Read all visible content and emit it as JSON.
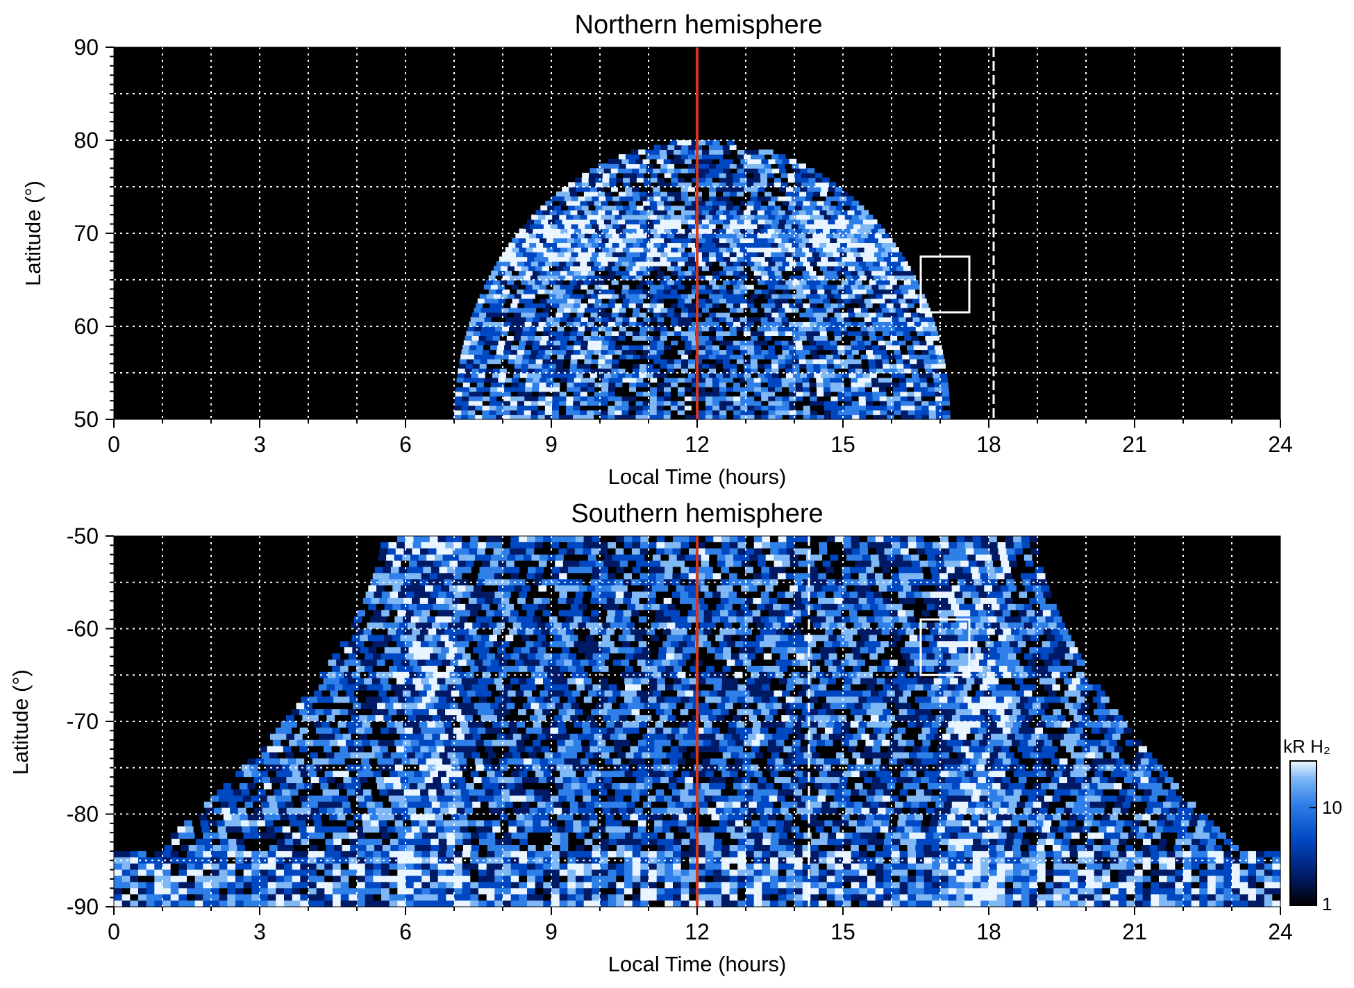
{
  "chart_data": [
    {
      "type": "heatmap",
      "title": "Northern hemisphere",
      "xlabel": "Local Time (hours)",
      "ylabel": "Latitude (°)",
      "xlim": [
        0,
        24
      ],
      "ylim": [
        50,
        90
      ],
      "xticks": [
        "0",
        "3",
        "6",
        "9",
        "12",
        "15",
        "18",
        "21",
        "24"
      ],
      "yticks": [
        "50",
        "60",
        "70",
        "80",
        "90"
      ],
      "grid": true,
      "background": "#000000",
      "colormap": [
        "#000000",
        "#001a66",
        "#0047c2",
        "#2f7fe8",
        "#7fb8f5",
        "#e8f4ff"
      ],
      "coverage": {
        "lt_start": 7,
        "lt_end": 17.2,
        "lat_max": 80
      },
      "markers": [
        {
          "type": "vline",
          "x": 12,
          "color": "#d4381c"
        },
        {
          "type": "vline",
          "x": 18.1,
          "color": "#ffffff",
          "style": "dashed"
        },
        {
          "type": "box",
          "x": [
            16.6,
            17.6
          ],
          "y": [
            61.5,
            67.5
          ],
          "color": "#ffffff"
        }
      ]
    },
    {
      "type": "heatmap",
      "title": "Southern hemisphere",
      "xlabel": "Local Time (hours)",
      "ylabel": "Latitude (°)",
      "xlim": [
        0,
        24
      ],
      "ylim": [
        -90,
        -50
      ],
      "xticks": [
        "0",
        "3",
        "6",
        "9",
        "12",
        "15",
        "18",
        "21",
        "24"
      ],
      "yticks": [
        "-90",
        "-80",
        "-70",
        "-60",
        "-50"
      ],
      "grid": true,
      "background": "#000000",
      "colormap": [
        "#000000",
        "#001a66",
        "#0047c2",
        "#2f7fe8",
        "#7fb8f5",
        "#e8f4ff"
      ],
      "coverage": {
        "lt_top_start": 5.5,
        "lt_top_end": 19,
        "lt_bottom_start": 0,
        "lt_bottom_end": 24,
        "lat_base": -84
      },
      "markers": [
        {
          "type": "vline",
          "x": 12,
          "color": "#d4381c"
        },
        {
          "type": "vline",
          "x": 14.3,
          "color": "#ffffff",
          "style": "dashed"
        },
        {
          "type": "box",
          "x": [
            16.6,
            17.6
          ],
          "y": [
            -65,
            -59
          ],
          "color": "#ffffff"
        }
      ],
      "colorbar": {
        "label": "kR H₂",
        "ticks": [
          "1",
          "10"
        ],
        "scale": "log"
      }
    }
  ]
}
